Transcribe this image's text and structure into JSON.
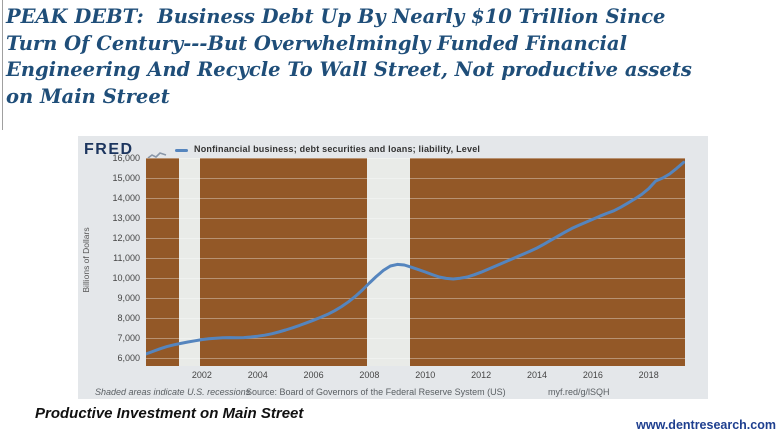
{
  "headline": {
    "lines": [
      "PEAK DEBT:  Business Debt Up By Nearly $10 Trillion Since",
      "Turn Of Century---But Overwhelmingly Funded Financial",
      "Engineering And Recycle To Wall Street, Not productive assets",
      "on Main Street"
    ]
  },
  "chart": {
    "brand": "FRED",
    "legend_label": "Nonfinancial business; debt securities and loans; liability, Level",
    "footer": {
      "shaded_note": "Shaded areas indicate U.S. recessions",
      "source": "Source: Board of Governors of the Federal Reserve System (US)",
      "shortlink": "myf.red/g/lSQH"
    }
  },
  "chart_data": {
    "type": "line",
    "title": "Nonfinancial business; debt securities and loans; liability, Level",
    "xlabel": "",
    "ylabel": "Billions of Dollars",
    "xlim": [
      2000,
      2019.3
    ],
    "ylim": [
      5600,
      16000
    ],
    "yticks": [
      6000,
      7000,
      8000,
      9000,
      10000,
      11000,
      12000,
      13000,
      14000,
      15000,
      16000
    ],
    "xticks": [
      2002,
      2004,
      2006,
      2008,
      2010,
      2012,
      2014,
      2016,
      2018
    ],
    "grid": true,
    "legend_position": "top",
    "recessions": [
      [
        2001.17,
        2001.92
      ],
      [
        2007.92,
        2009.45
      ]
    ],
    "series": [
      {
        "name": "Nonfinancial business; debt securities and loans; liability, Level",
        "points": [
          [
            2000.0,
            6200
          ],
          [
            2000.25,
            6330
          ],
          [
            2000.5,
            6460
          ],
          [
            2000.75,
            6570
          ],
          [
            2001.0,
            6660
          ],
          [
            2001.25,
            6730
          ],
          [
            2001.5,
            6800
          ],
          [
            2001.75,
            6860
          ],
          [
            2002.0,
            6920
          ],
          [
            2002.25,
            6960
          ],
          [
            2002.5,
            6990
          ],
          [
            2002.75,
            7010
          ],
          [
            2003.0,
            7020
          ],
          [
            2003.25,
            7010
          ],
          [
            2003.5,
            7020
          ],
          [
            2003.75,
            7050
          ],
          [
            2004.0,
            7090
          ],
          [
            2004.25,
            7140
          ],
          [
            2004.5,
            7210
          ],
          [
            2004.75,
            7300
          ],
          [
            2005.0,
            7400
          ],
          [
            2005.25,
            7510
          ],
          [
            2005.5,
            7630
          ],
          [
            2005.75,
            7760
          ],
          [
            2006.0,
            7890
          ],
          [
            2006.25,
            8030
          ],
          [
            2006.5,
            8180
          ],
          [
            2006.75,
            8360
          ],
          [
            2007.0,
            8570
          ],
          [
            2007.25,
            8810
          ],
          [
            2007.5,
            9090
          ],
          [
            2007.75,
            9400
          ],
          [
            2008.0,
            9750
          ],
          [
            2008.25,
            10080
          ],
          [
            2008.5,
            10380
          ],
          [
            2008.75,
            10600
          ],
          [
            2009.0,
            10680
          ],
          [
            2009.25,
            10650
          ],
          [
            2009.5,
            10540
          ],
          [
            2009.75,
            10420
          ],
          [
            2010.0,
            10300
          ],
          [
            2010.25,
            10170
          ],
          [
            2010.5,
            10050
          ],
          [
            2010.75,
            9980
          ],
          [
            2011.0,
            9950
          ],
          [
            2011.25,
            9990
          ],
          [
            2011.5,
            10050
          ],
          [
            2011.75,
            10160
          ],
          [
            2012.0,
            10290
          ],
          [
            2012.25,
            10440
          ],
          [
            2012.5,
            10590
          ],
          [
            2012.75,
            10740
          ],
          [
            2013.0,
            10890
          ],
          [
            2013.25,
            11040
          ],
          [
            2013.5,
            11190
          ],
          [
            2013.75,
            11340
          ],
          [
            2014.0,
            11500
          ],
          [
            2014.25,
            11690
          ],
          [
            2014.5,
            11890
          ],
          [
            2014.75,
            12090
          ],
          [
            2015.0,
            12290
          ],
          [
            2015.25,
            12480
          ],
          [
            2015.5,
            12640
          ],
          [
            2015.75,
            12790
          ],
          [
            2016.0,
            12940
          ],
          [
            2016.25,
            13090
          ],
          [
            2016.5,
            13230
          ],
          [
            2016.75,
            13360
          ],
          [
            2017.0,
            13540
          ],
          [
            2017.25,
            13740
          ],
          [
            2017.5,
            13950
          ],
          [
            2017.75,
            14180
          ],
          [
            2018.0,
            14470
          ],
          [
            2018.25,
            14850
          ],
          [
            2018.5,
            15000
          ],
          [
            2018.75,
            15200
          ],
          [
            2019.0,
            15480
          ],
          [
            2019.25,
            15780
          ]
        ]
      }
    ]
  },
  "caption": "Productive Investment on Main Street",
  "website": "www.dentresearch.com",
  "colors": {
    "headline": "#1f4e79",
    "card_bg": "#e4e7ea",
    "plot_bg": "#935827",
    "recession_band": "#e9ebe8",
    "line": "#5585be",
    "brand": "#1c355e",
    "website": "#1e3f8f",
    "gridline": "rgba(255,255,255,0.35)"
  }
}
